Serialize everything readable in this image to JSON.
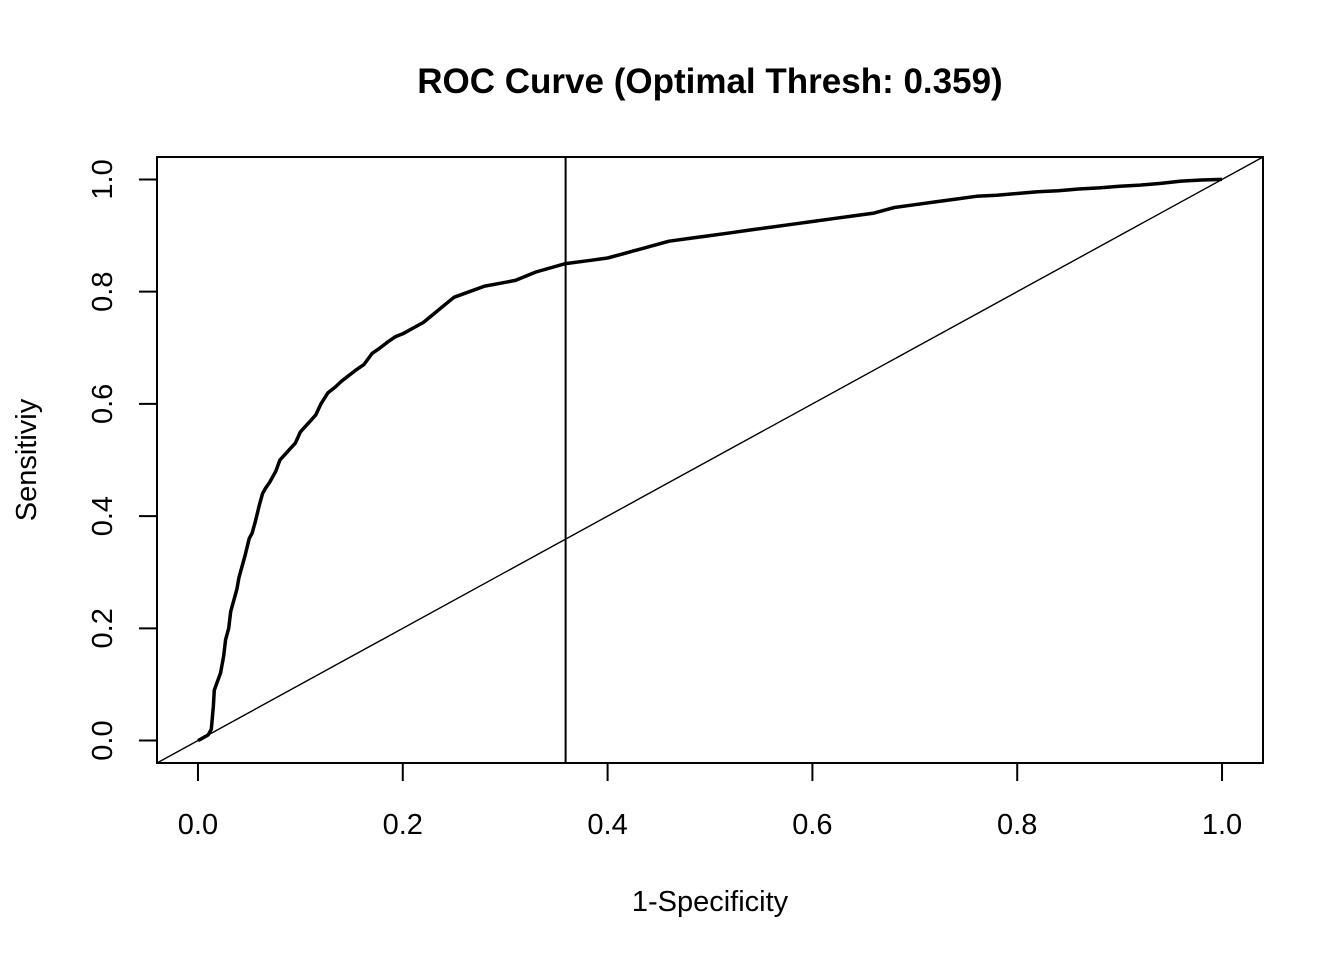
{
  "chart_data": {
    "type": "line",
    "title": "ROC Curve (Optimal Thresh: 0.359)",
    "xlabel": "1-Specificity",
    "ylabel": "Sensitiviy",
    "xlim": [
      -0.04,
      1.04
    ],
    "ylim": [
      -0.04,
      1.04
    ],
    "xticks": [
      "0.0",
      "0.2",
      "0.4",
      "0.6",
      "0.8",
      "1.0"
    ],
    "yticks": [
      "0.0",
      "0.2",
      "0.4",
      "0.6",
      "0.8",
      "1.0"
    ],
    "grid": false,
    "optimal_threshold_x": 0.359,
    "series": [
      {
        "x": [
          0.0,
          0.005,
          0.01,
          0.013,
          0.015,
          0.016,
          0.018,
          0.02,
          0.022,
          0.025,
          0.027,
          0.03,
          0.032,
          0.035,
          0.038,
          0.04,
          0.043,
          0.046,
          0.05,
          0.053,
          0.056,
          0.06,
          0.063,
          0.066,
          0.07,
          0.073,
          0.076,
          0.08,
          0.085,
          0.09,
          0.095,
          0.1,
          0.105,
          0.11,
          0.115,
          0.12,
          0.127,
          0.134,
          0.14,
          0.147,
          0.154,
          0.162,
          0.17,
          0.178,
          0.185,
          0.193,
          0.2,
          0.21,
          0.22,
          0.23,
          0.24,
          0.25,
          0.265,
          0.28,
          0.295,
          0.31,
          0.33,
          0.359,
          0.38,
          0.4,
          0.42,
          0.44,
          0.46,
          0.48,
          0.5,
          0.52,
          0.54,
          0.56,
          0.58,
          0.6,
          0.62,
          0.64,
          0.66,
          0.68,
          0.7,
          0.72,
          0.74,
          0.76,
          0.78,
          0.8,
          0.82,
          0.84,
          0.86,
          0.88,
          0.9,
          0.92,
          0.94,
          0.96,
          0.98,
          1.0
        ],
        "y": [
          0.0,
          0.005,
          0.01,
          0.02,
          0.06,
          0.09,
          0.1,
          0.11,
          0.12,
          0.15,
          0.18,
          0.2,
          0.23,
          0.25,
          0.27,
          0.29,
          0.31,
          0.33,
          0.36,
          0.37,
          0.39,
          0.42,
          0.44,
          0.45,
          0.46,
          0.47,
          0.48,
          0.5,
          0.51,
          0.52,
          0.53,
          0.55,
          0.56,
          0.57,
          0.58,
          0.6,
          0.62,
          0.63,
          0.64,
          0.65,
          0.66,
          0.67,
          0.69,
          0.7,
          0.71,
          0.72,
          0.725,
          0.735,
          0.745,
          0.76,
          0.775,
          0.79,
          0.8,
          0.81,
          0.815,
          0.82,
          0.835,
          0.85,
          0.855,
          0.86,
          0.87,
          0.88,
          0.89,
          0.895,
          0.9,
          0.905,
          0.91,
          0.915,
          0.92,
          0.925,
          0.93,
          0.935,
          0.94,
          0.95,
          0.955,
          0.96,
          0.965,
          0.97,
          0.972,
          0.975,
          0.978,
          0.98,
          0.983,
          0.985,
          0.988,
          0.99,
          0.993,
          0.997,
          0.999,
          1.0
        ]
      }
    ]
  }
}
